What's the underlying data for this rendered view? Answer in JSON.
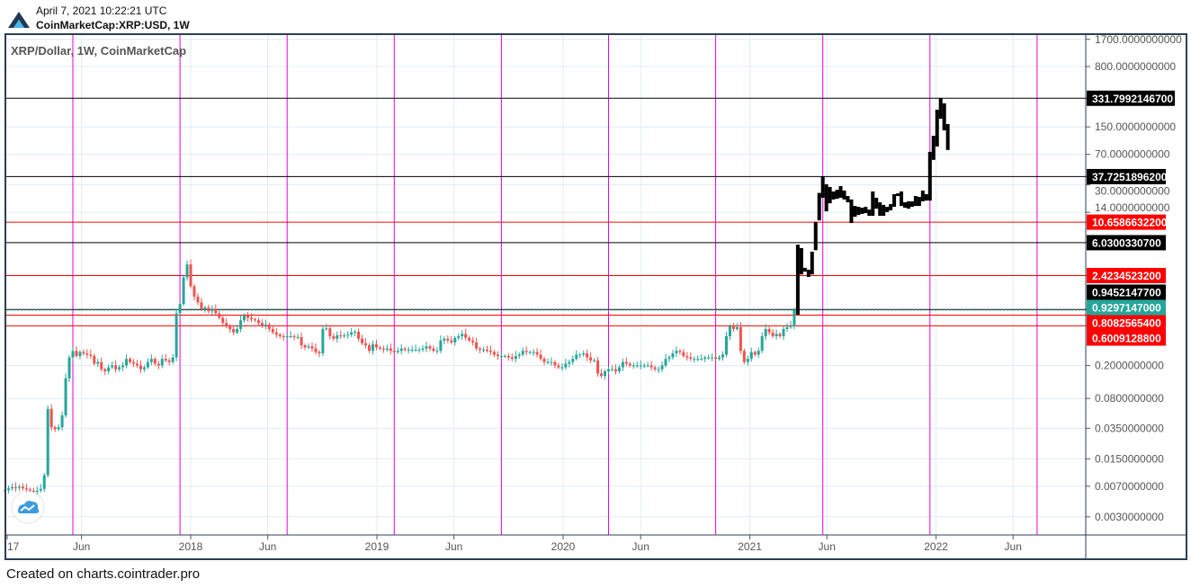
{
  "header": {
    "date": "April 7, 2021 10:22:21 UTC",
    "symbol": "CoinMarketCap:XRP:USD, 1W",
    "logo_icon": "cointrader-logo-icon"
  },
  "legend": "XRP/Dollar, 1W, CoinMarketCap",
  "footer": "Created on charts.cointrader.pro",
  "colors": {
    "up": "#26a69a",
    "down": "#ef5350",
    "projection": "#000000",
    "cycle_line": "#e600e6",
    "grid": "#e1ecf2",
    "frame": "#2a3f55"
  },
  "chart_data": {
    "type": "candlestick",
    "scale": "log",
    "interval": "1W",
    "first_candle": "2017-01-02",
    "ylim": [
      0.0022,
      2000
    ],
    "xlim": [
      "2016-12-20",
      "2022-10-20"
    ],
    "grid": true,
    "y_ticks": [
      "1700.0000000000",
      "800.0000000000",
      "150.0000000000",
      "70.0000000000",
      "30.0000000000",
      "14.0000000000",
      "0.2000000000",
      "0.0800000000",
      "0.0350000000",
      "0.0150000000",
      "0.0070000000",
      "0.0030000000"
    ],
    "x_ticks": [
      {
        "label": "17",
        "date": "2017-01-01"
      },
      {
        "label": "Jun",
        "date": "2017-06-01"
      },
      {
        "label": "2018",
        "date": "2018-01-01"
      },
      {
        "label": "Jun",
        "date": "2018-06-01"
      },
      {
        "label": "2019",
        "date": "2019-01-01"
      },
      {
        "label": "Jun",
        "date": "2019-06-01"
      },
      {
        "label": "2020",
        "date": "2020-01-01"
      },
      {
        "label": "Jun",
        "date": "2020-06-01"
      },
      {
        "label": "2021",
        "date": "2021-01-01"
      },
      {
        "label": "Jun",
        "date": "2021-06-01"
      },
      {
        "label": "2022",
        "date": "2022-01-01"
      },
      {
        "label": "Jun",
        "date": "2022-06-01"
      }
    ],
    "weekly_closes": [
      0.0063,
      0.0066,
      0.0068,
      0.0067,
      0.0069,
      0.0066,
      0.0064,
      0.0062,
      0.006,
      0.0062,
      0.0065,
      0.0095,
      0.06,
      0.036,
      0.034,
      0.036,
      0.05,
      0.14,
      0.25,
      0.3,
      0.26,
      0.29,
      0.28,
      0.27,
      0.26,
      0.21,
      0.22,
      0.18,
      0.17,
      0.19,
      0.2,
      0.18,
      0.19,
      0.2,
      0.24,
      0.22,
      0.21,
      0.2,
      0.18,
      0.19,
      0.22,
      0.24,
      0.21,
      0.2,
      0.24,
      0.23,
      0.22,
      0.25,
      0.85,
      1.1,
      2.3,
      3.3,
      1.8,
      1.35,
      1.15,
      0.95,
      1.0,
      0.9,
      0.95,
      0.85,
      0.75,
      0.65,
      0.6,
      0.55,
      0.5,
      0.55,
      0.7,
      0.8,
      0.75,
      0.72,
      0.7,
      0.65,
      0.6,
      0.62,
      0.55,
      0.5,
      0.47,
      0.45,
      0.44,
      0.45,
      0.45,
      0.44,
      0.44,
      0.35,
      0.33,
      0.34,
      0.32,
      0.29,
      0.28,
      0.55,
      0.56,
      0.45,
      0.42,
      0.46,
      0.45,
      0.46,
      0.47,
      0.5,
      0.51,
      0.42,
      0.37,
      0.35,
      0.3,
      0.36,
      0.33,
      0.32,
      0.31,
      0.32,
      0.3,
      0.29,
      0.3,
      0.32,
      0.31,
      0.31,
      0.31,
      0.31,
      0.31,
      0.32,
      0.34,
      0.32,
      0.3,
      0.3,
      0.4,
      0.42,
      0.4,
      0.38,
      0.43,
      0.45,
      0.48,
      0.43,
      0.4,
      0.38,
      0.32,
      0.31,
      0.31,
      0.3,
      0.29,
      0.27,
      0.26,
      0.26,
      0.26,
      0.25,
      0.24,
      0.26,
      0.27,
      0.3,
      0.29,
      0.29,
      0.29,
      0.27,
      0.24,
      0.22,
      0.22,
      0.22,
      0.2,
      0.19,
      0.19,
      0.21,
      0.22,
      0.24,
      0.27,
      0.27,
      0.28,
      0.25,
      0.23,
      0.23,
      0.16,
      0.15,
      0.17,
      0.18,
      0.18,
      0.17,
      0.19,
      0.22,
      0.21,
      0.2,
      0.2,
      0.2,
      0.2,
      0.2,
      0.2,
      0.19,
      0.18,
      0.18,
      0.2,
      0.24,
      0.25,
      0.28,
      0.3,
      0.29,
      0.26,
      0.25,
      0.24,
      0.24,
      0.24,
      0.24,
      0.25,
      0.25,
      0.25,
      0.24,
      0.25,
      0.27,
      0.45,
      0.6,
      0.55,
      0.58,
      0.3,
      0.22,
      0.24,
      0.29,
      0.27,
      0.3,
      0.45,
      0.55,
      0.5,
      0.45,
      0.48,
      0.45,
      0.55,
      0.58,
      0.6,
      0.93
    ],
    "projection_ranges": [
      [
        0.82,
        5.7
      ],
      [
        2.5,
        5.2
      ],
      [
        2.7,
        3.0
      ],
      [
        2.33,
        2.85
      ],
      [
        2.5,
        4.7
      ],
      [
        4.9,
        10.7
      ],
      [
        11.2,
        24
      ],
      [
        21,
        37.7
      ],
      [
        14.4,
        30.5
      ],
      [
        18,
        28.3
      ],
      [
        20,
        25
      ],
      [
        20.4,
        26.2
      ],
      [
        21,
        29
      ],
      [
        20,
        25.6
      ],
      [
        18.5,
        22
      ],
      [
        10.4,
        20
      ],
      [
        12.4,
        16.7
      ],
      [
        13,
        16.3
      ],
      [
        13.4,
        15.9
      ],
      [
        13.7,
        16.3
      ],
      [
        12.7,
        15.1
      ],
      [
        12.7,
        25
      ],
      [
        15.5,
        21
      ],
      [
        12.7,
        18.5
      ],
      [
        12.7,
        17.2
      ],
      [
        14.1,
        16.3
      ],
      [
        14.8,
        17.6
      ],
      [
        16.3,
        23.2
      ],
      [
        22,
        23.7
      ],
      [
        16.7,
        25
      ],
      [
        15.9,
        18.5
      ],
      [
        15.5,
        19
      ],
      [
        16.3,
        19
      ],
      [
        16.7,
        22
      ],
      [
        16.7,
        21.5
      ],
      [
        19,
        25.6
      ],
      [
        19.4,
        23.2
      ],
      [
        19.4,
        75
      ],
      [
        60,
        117
      ],
      [
        87,
        241
      ],
      [
        188,
        331.8
      ],
      [
        136,
        288
      ],
      [
        79,
        162
      ]
    ],
    "price_lines": [
      {
        "value": 331.79921467,
        "label": "331.7992146700",
        "color": "#000000",
        "style": "solid"
      },
      {
        "value": 37.72518962,
        "label": "37.7251896200",
        "color": "#000000",
        "style": "solid"
      },
      {
        "value": 10.65866322,
        "label": "10.6586632200",
        "color": "#ff0000",
        "style": "solid"
      },
      {
        "value": 6.03003307,
        "label": "6.0300330700",
        "color": "#000000",
        "style": "solid"
      },
      {
        "value": 2.42345232,
        "label": "2.4234523200",
        "color": "#ff0000",
        "style": "solid"
      },
      {
        "value": 0.94521477,
        "label": "0.9452147700",
        "color": "#000000",
        "style": "solid"
      },
      {
        "value": 0.9297147,
        "label": "0.9297147000",
        "color": "#26a69a",
        "style": "dotted"
      },
      {
        "value": 0.80825654,
        "label": "0.8082565400",
        "color": "#ff0000",
        "style": "solid"
      },
      {
        "value": 0.60091288,
        "label": "0.6009128800",
        "color": "#ff0000",
        "style": "solid"
      }
    ],
    "cycle_lines": [
      "2017-05-15",
      "2017-12-11",
      "2018-07-09",
      "2019-02-04",
      "2019-09-02",
      "2020-03-30",
      "2020-10-26",
      "2021-05-24",
      "2021-12-20",
      "2022-07-18"
    ]
  }
}
